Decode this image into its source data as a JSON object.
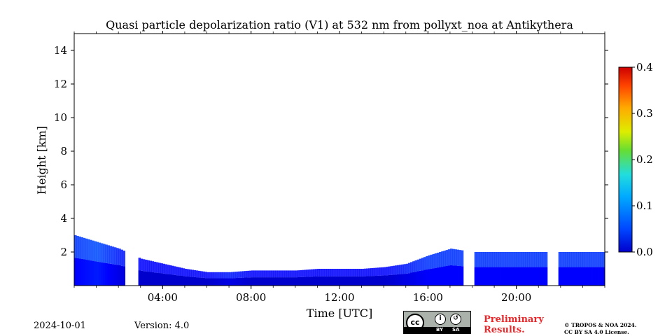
{
  "chart_data": {
    "type": "heatmap",
    "title": "Quasi particle depolarization ratio (V1) at 532 nm from pollyxt_noa at Antikythera",
    "xlabel": "Time [UTC]",
    "ylabel": "Height [km]",
    "x_ticks": [
      "04:00",
      "08:00",
      "12:00",
      "16:00",
      "20:00"
    ],
    "x_tick_hours": [
      4,
      8,
      12,
      16,
      20
    ],
    "xlim_hours": [
      0,
      24
    ],
    "y_ticks": [
      "2",
      "4",
      "6",
      "8",
      "10",
      "12",
      "14"
    ],
    "y_tick_values": [
      2,
      4,
      6,
      8,
      10,
      12,
      14
    ],
    "ylim_km": [
      0,
      15
    ],
    "colorbar": {
      "ticks": [
        "0.0",
        "0.1",
        "0.2",
        "0.3",
        "0.4"
      ],
      "tick_values": [
        0.0,
        0.1,
        0.2,
        0.3,
        0.4
      ],
      "range": [
        0.0,
        0.4
      ],
      "colormap": "jet"
    },
    "data_gaps_hours": [
      [
        2.35,
        2.9
      ],
      [
        17.6,
        18.1
      ],
      [
        21.4,
        21.9
      ]
    ],
    "profile": [
      {
        "hour": 0.0,
        "top_km": 3.0,
        "base_ratio": 0.05
      },
      {
        "hour": 1.0,
        "top_km": 2.6,
        "base_ratio": 0.06
      },
      {
        "hour": 2.0,
        "top_km": 2.2,
        "base_ratio": 0.04
      },
      {
        "hour": 3.0,
        "top_km": 1.6,
        "base_ratio": 0.03
      },
      {
        "hour": 4.0,
        "top_km": 1.3,
        "base_ratio": 0.03
      },
      {
        "hour": 5.0,
        "top_km": 1.0,
        "base_ratio": 0.03
      },
      {
        "hour": 6.0,
        "top_km": 0.8,
        "base_ratio": 0.03
      },
      {
        "hour": 7.0,
        "top_km": 0.8,
        "base_ratio": 0.04
      },
      {
        "hour": 8.0,
        "top_km": 0.9,
        "base_ratio": 0.03
      },
      {
        "hour": 9.0,
        "top_km": 0.9,
        "base_ratio": 0.03
      },
      {
        "hour": 10.0,
        "top_km": 0.9,
        "base_ratio": 0.03
      },
      {
        "hour": 11.0,
        "top_km": 1.0,
        "base_ratio": 0.03
      },
      {
        "hour": 12.0,
        "top_km": 1.0,
        "base_ratio": 0.03
      },
      {
        "hour": 13.0,
        "top_km": 1.0,
        "base_ratio": 0.03
      },
      {
        "hour": 14.0,
        "top_km": 1.1,
        "base_ratio": 0.03
      },
      {
        "hour": 15.0,
        "top_km": 1.3,
        "base_ratio": 0.04
      },
      {
        "hour": 16.0,
        "top_km": 1.8,
        "base_ratio": 0.05
      },
      {
        "hour": 17.0,
        "top_km": 2.2,
        "base_ratio": 0.05
      },
      {
        "hour": 18.0,
        "top_km": 2.0,
        "base_ratio": 0.05
      },
      {
        "hour": 19.0,
        "top_km": 2.0,
        "base_ratio": 0.05
      },
      {
        "hour": 20.0,
        "top_km": 2.0,
        "base_ratio": 0.05
      },
      {
        "hour": 21.0,
        "top_km": 2.0,
        "base_ratio": 0.05
      },
      {
        "hour": 22.0,
        "top_km": 2.0,
        "base_ratio": 0.05
      },
      {
        "hour": 23.0,
        "top_km": 2.0,
        "base_ratio": 0.05
      },
      {
        "hour": 24.0,
        "top_km": 2.0,
        "base_ratio": 0.05
      }
    ]
  },
  "footer": {
    "date": "2024-10-01",
    "version": "Version: 4.0",
    "preliminary_line1": "Preliminary",
    "preliminary_line2": "Results.",
    "copyright_line1": "© TROPOS & NOA 2024.",
    "copyright_line2": "CC BY SA 4.0 License.",
    "license_badge": {
      "cc": "cc",
      "by": "BY",
      "sa": "SA",
      "by_icon": "attribution-icon",
      "sa_icon": "share-alike-icon"
    }
  },
  "colors": {
    "preliminary": "#e8282b",
    "badge_bg": "#aab2ab"
  }
}
